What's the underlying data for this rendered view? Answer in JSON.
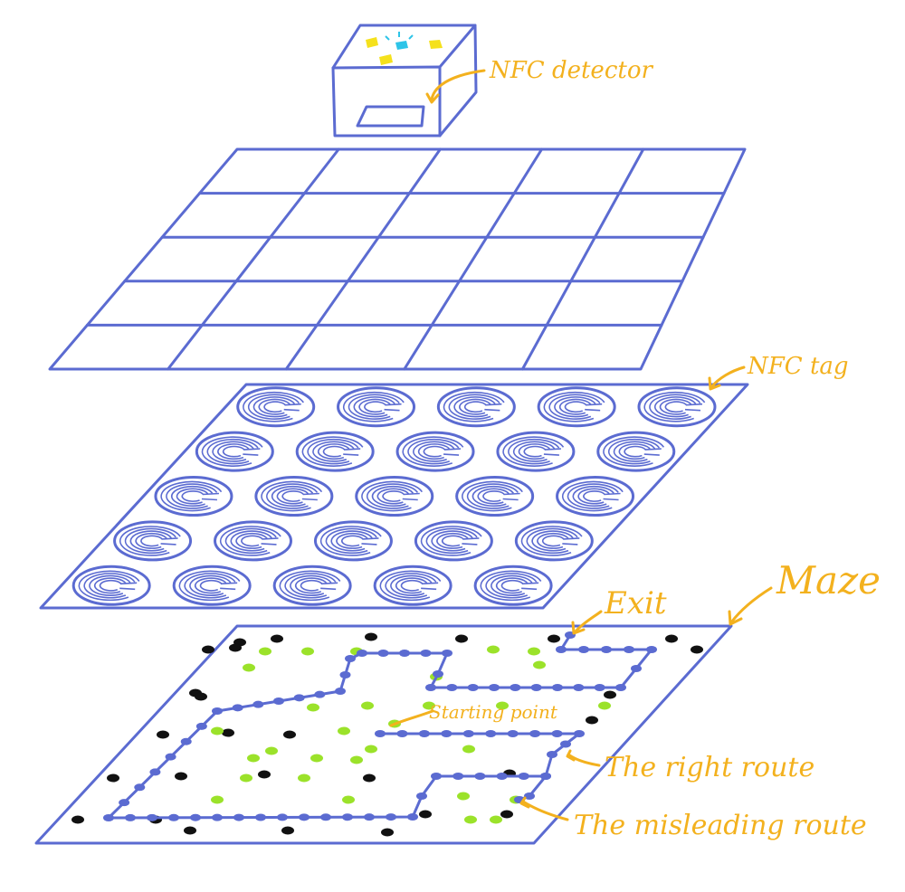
{
  "labels": {
    "nfc_detector": "NFC detector",
    "nfc_tag": "NFC tag",
    "maze": "Maze",
    "exit": "Exit",
    "starting_point": "Starting point",
    "right_route": "The right route",
    "misleading_route": "The misleading route"
  },
  "colors": {
    "line": "#5b6bd1",
    "annotation": "#f3b11e",
    "led_yellow": "#f5e11c",
    "led_cyan": "#2ec4e8",
    "dot_green": "#9be22a",
    "dot_black": "#111111"
  },
  "layers": {
    "grid": {
      "rows": 5,
      "cols": 5
    },
    "tags": {
      "rows": 5,
      "cols": 5
    },
    "maze": {
      "rows": 8,
      "cols": 11
    }
  }
}
